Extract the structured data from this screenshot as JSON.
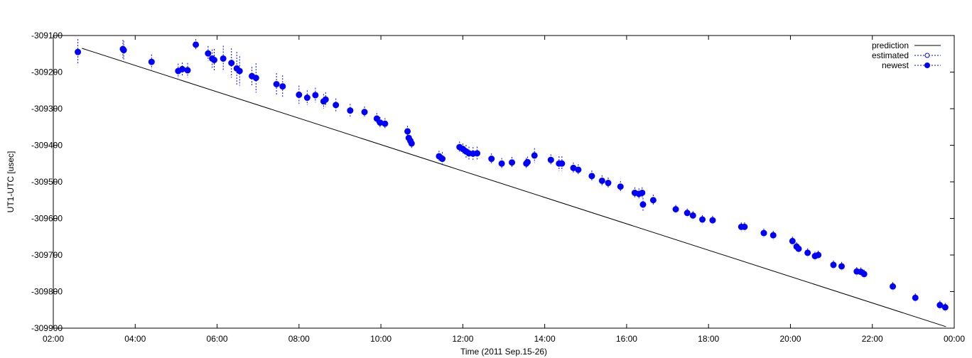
{
  "chart_data": {
    "type": "scatter",
    "title": "",
    "xlabel": "Time (2011 Sep.15-26)",
    "ylabel": "UT1-UTC [usec]",
    "xlim": [
      2.0,
      24.0
    ],
    "ylim": [
      -309900,
      -309100
    ],
    "grid": false,
    "legend_position": "top-right",
    "x_ticks": [
      {
        "v": 2,
        "label": "02:00"
      },
      {
        "v": 4,
        "label": "04:00"
      },
      {
        "v": 6,
        "label": "06:00"
      },
      {
        "v": 8,
        "label": "08:00"
      },
      {
        "v": 10,
        "label": "10:00"
      },
      {
        "v": 12,
        "label": "12:00"
      },
      {
        "v": 14,
        "label": "14:00"
      },
      {
        "v": 16,
        "label": "16:00"
      },
      {
        "v": 18,
        "label": "18:00"
      },
      {
        "v": 20,
        "label": "20:00"
      },
      {
        "v": 22,
        "label": "22:00"
      },
      {
        "v": 24,
        "label": "00:00"
      }
    ],
    "y_ticks": [
      {
        "v": -309100,
        "label": "-309100"
      },
      {
        "v": -309200,
        "label": "-309200"
      },
      {
        "v": -309300,
        "label": "-309300"
      },
      {
        "v": -309400,
        "label": "-309400"
      },
      {
        "v": -309500,
        "label": "-309500"
      },
      {
        "v": -309600,
        "label": "-309600"
      },
      {
        "v": -309700,
        "label": "-309700"
      },
      {
        "v": -309800,
        "label": "-309800"
      },
      {
        "v": -309900,
        "label": "-309900"
      }
    ],
    "legend": [
      {
        "label": "prediction",
        "style": "line"
      },
      {
        "label": "estimated",
        "style": "open-circle-dashed"
      },
      {
        "label": "newest",
        "style": "filled-circle-dashed"
      }
    ],
    "colors": {
      "prediction": "#000000",
      "points": "#0000ff"
    },
    "series": [
      {
        "name": "prediction",
        "type": "line",
        "points": [
          [
            2.7,
            -309135
          ],
          [
            23.8,
            -309896
          ]
        ]
      },
      {
        "name": "newest",
        "type": "scatter-errorbar",
        "points": [
          [
            2.6,
            -309145,
            35
          ],
          [
            3.7,
            -309137,
            25
          ],
          [
            3.72,
            -309140,
            25
          ],
          [
            4.4,
            -309172,
            20
          ],
          [
            5.05,
            -309197,
            20
          ],
          [
            5.15,
            -309192,
            18
          ],
          [
            5.28,
            -309195,
            20
          ],
          [
            5.48,
            -309125,
            15
          ],
          [
            5.78,
            -309149,
            20
          ],
          [
            5.88,
            -309163,
            25
          ],
          [
            5.93,
            -309167,
            30
          ],
          [
            6.15,
            -309163,
            35
          ],
          [
            6.35,
            -309175,
            40
          ],
          [
            6.48,
            -309190,
            45
          ],
          [
            6.55,
            -309197,
            40
          ],
          [
            6.85,
            -309211,
            25
          ],
          [
            6.95,
            -309216,
            40
          ],
          [
            7.45,
            -309233,
            30
          ],
          [
            7.6,
            -309239,
            30
          ],
          [
            8.0,
            -309262,
            25
          ],
          [
            8.2,
            -309270,
            20
          ],
          [
            8.4,
            -309263,
            20
          ],
          [
            8.6,
            -309280,
            20
          ],
          [
            8.65,
            -309275,
            20
          ],
          [
            8.9,
            -309290,
            18
          ],
          [
            9.25,
            -309305,
            18
          ],
          [
            9.6,
            -309309,
            15
          ],
          [
            9.9,
            -309327,
            15
          ],
          [
            9.98,
            -309338,
            15
          ],
          [
            10.1,
            -309341,
            15
          ],
          [
            10.65,
            -309362,
            15
          ],
          [
            10.68,
            -309380,
            15
          ],
          [
            10.72,
            -309388,
            15
          ],
          [
            10.75,
            -309395,
            15
          ],
          [
            11.42,
            -309430,
            15
          ],
          [
            11.5,
            -309437,
            18
          ],
          [
            11.92,
            -309405,
            15
          ],
          [
            12.0,
            -309410,
            15
          ],
          [
            12.08,
            -309417,
            18
          ],
          [
            12.15,
            -309422,
            18
          ],
          [
            12.25,
            -309423,
            18
          ],
          [
            12.35,
            -309422,
            18
          ],
          [
            12.7,
            -309437,
            15
          ],
          [
            12.95,
            -309450,
            15
          ],
          [
            13.2,
            -309447,
            15
          ],
          [
            13.55,
            -309450,
            15
          ],
          [
            13.58,
            -309446,
            15
          ],
          [
            13.75,
            -309428,
            20
          ],
          [
            14.15,
            -309440,
            15
          ],
          [
            14.35,
            -309450,
            20
          ],
          [
            14.42,
            -309450,
            20
          ],
          [
            14.7,
            -309462,
            15
          ],
          [
            14.82,
            -309467,
            15
          ],
          [
            15.15,
            -309484,
            15
          ],
          [
            15.4,
            -309497,
            15
          ],
          [
            15.55,
            -309503,
            15
          ],
          [
            15.85,
            -309513,
            15
          ],
          [
            16.2,
            -309530,
            15
          ],
          [
            16.3,
            -309533,
            15
          ],
          [
            16.38,
            -309530,
            15
          ],
          [
            16.4,
            -309562,
            18
          ],
          [
            16.65,
            -309550,
            15
          ],
          [
            17.2,
            -309575,
            12
          ],
          [
            17.48,
            -309585,
            12
          ],
          [
            17.62,
            -309592,
            12
          ],
          [
            17.85,
            -309603,
            12
          ],
          [
            18.1,
            -309605,
            12
          ],
          [
            18.8,
            -309623,
            12
          ],
          [
            18.88,
            -309623,
            12
          ],
          [
            19.35,
            -309640,
            12
          ],
          [
            19.58,
            -309646,
            12
          ],
          [
            20.05,
            -309662,
            12
          ],
          [
            20.15,
            -309677,
            12
          ],
          [
            20.2,
            -309683,
            12
          ],
          [
            20.42,
            -309694,
            12
          ],
          [
            20.6,
            -309703,
            12
          ],
          [
            20.68,
            -309700,
            12
          ],
          [
            21.05,
            -309727,
            12
          ],
          [
            21.25,
            -309731,
            12
          ],
          [
            21.62,
            -309745,
            12
          ],
          [
            21.72,
            -309746,
            12
          ],
          [
            21.8,
            -309752,
            12
          ],
          [
            22.5,
            -309786,
            12
          ],
          [
            23.05,
            -309817,
            12
          ],
          [
            23.65,
            -309837,
            12
          ],
          [
            23.78,
            -309843,
            12
          ]
        ]
      }
    ]
  }
}
